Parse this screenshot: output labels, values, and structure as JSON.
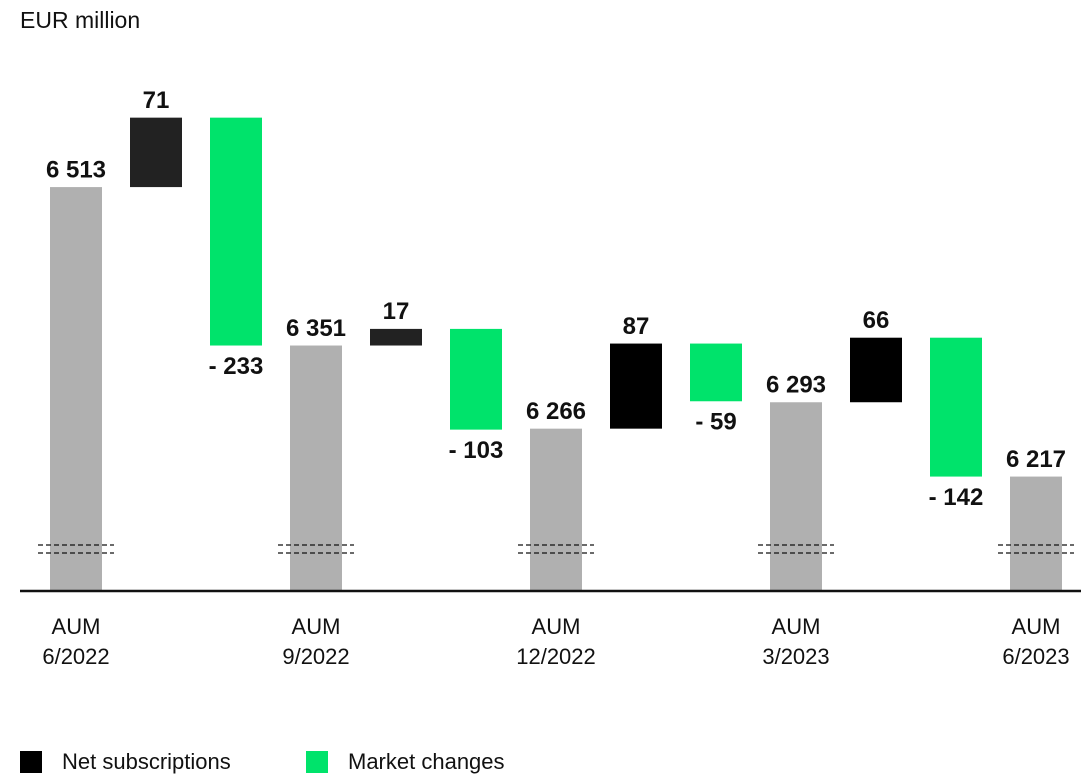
{
  "chart_data": {
    "type": "waterfall",
    "title": "EUR million",
    "categories": [
      "AUM\n6/2022",
      null,
      null,
      "AUM\n9/2022",
      null,
      null,
      "AUM\n12/2022",
      null,
      null,
      "AUM\n3/2023",
      null,
      null,
      "AUM\n6/2023"
    ],
    "values": [
      6513,
      71,
      -233,
      6351,
      17,
      -103,
      6266,
      87,
      -59,
      6293,
      66,
      -142,
      6217
    ],
    "value_labels": [
      "6 513",
      "71",
      "- 233",
      "6 351",
      "17",
      "- 103",
      "6 266",
      "87",
      "- 59",
      "6 293",
      "66",
      "- 142",
      "6 217"
    ],
    "colors": [
      "#b0b0b0",
      "#222222",
      "#00e36b",
      "#b0b0b0",
      "#222222",
      "#00e36b",
      "#b0b0b0",
      "#000000",
      "#00e36b",
      "#b0b0b0",
      "#000000",
      "#00e36b",
      "#b0b0b0"
    ],
    "legend": [
      {
        "name": "Net subscriptions",
        "color": "#000000"
      },
      {
        "name": "Market changes",
        "color": "#00e36b"
      }
    ],
    "ylim": [
      6100,
      6600
    ],
    "axis_break": true
  }
}
